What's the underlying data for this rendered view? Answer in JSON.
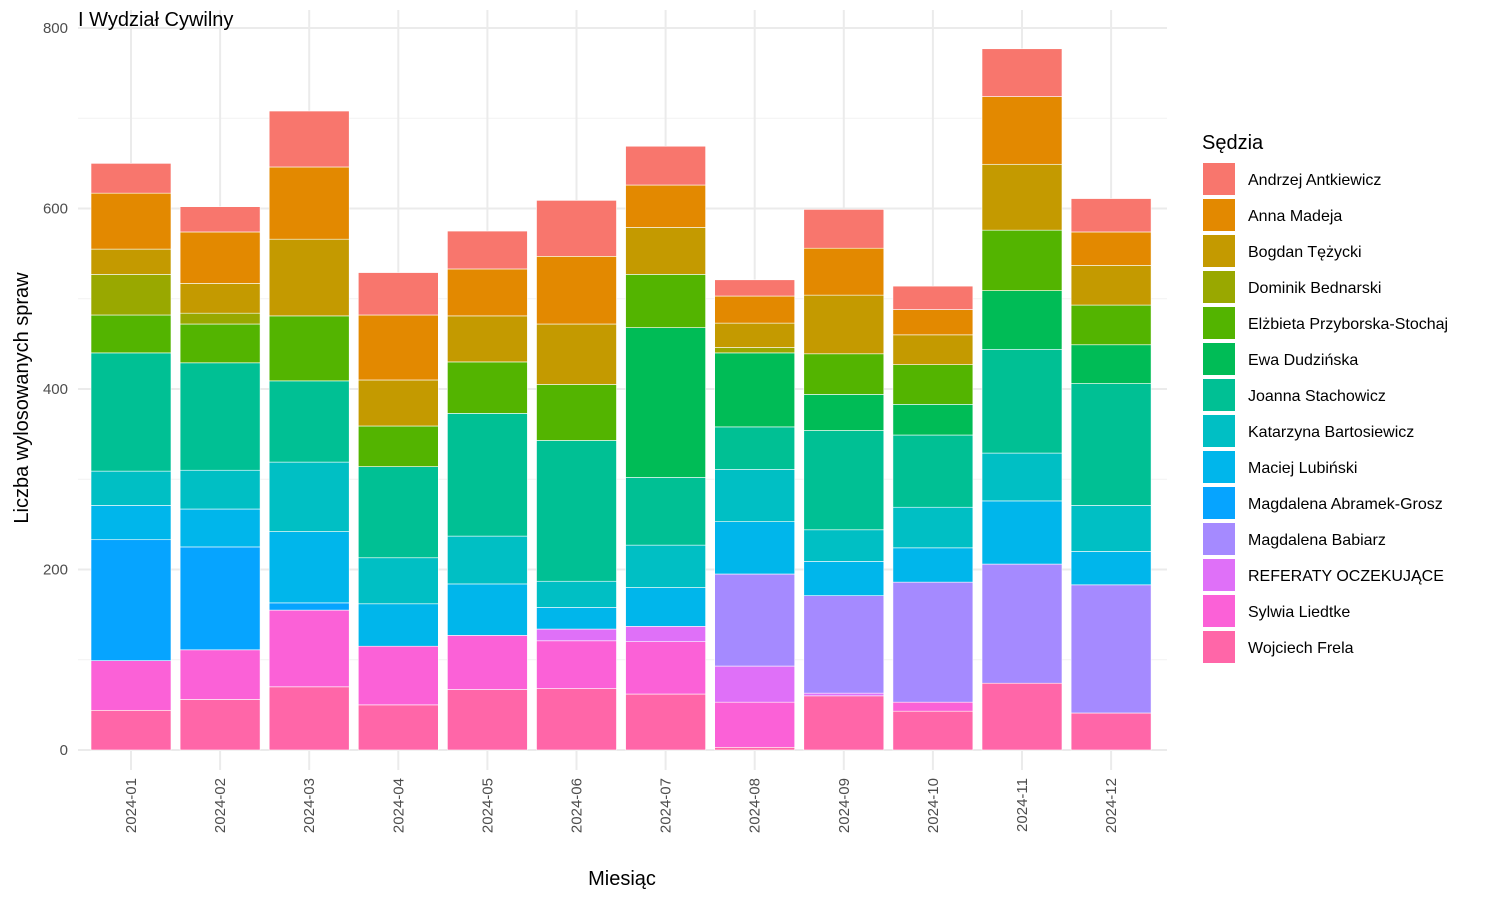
{
  "chart_data": {
    "type": "bar",
    "stacked": true,
    "title": "I Wydział Cywilny",
    "xlabel": "Miesiąc",
    "ylabel": "Liczba wylosowanych spraw",
    "ylim": [
      0,
      800
    ],
    "yticks": [
      0,
      200,
      400,
      600,
      800
    ],
    "grid": true,
    "legend_title": "Sędzia",
    "legend_position": "right",
    "categories": [
      "2024-01",
      "2024-02",
      "2024-03",
      "2024-04",
      "2024-05",
      "2024-06",
      "2024-07",
      "2024-08",
      "2024-09",
      "2024-10",
      "2024-11",
      "2024-12"
    ],
    "series": [
      {
        "name": "Andrzej Antkiewicz",
        "color": "#F8766D",
        "values": [
          33,
          28,
          62,
          47,
          42,
          62,
          43,
          18,
          43,
          26,
          53,
          37
        ]
      },
      {
        "name": "Anna Madeja",
        "color": "#E38900",
        "values": [
          62,
          57,
          80,
          72,
          52,
          75,
          47,
          30,
          52,
          28,
          75,
          37
        ]
      },
      {
        "name": "Bogdan Tężycki",
        "color": "#C49A00",
        "values": [
          28,
          33,
          85,
          51,
          51,
          67,
          52,
          27,
          65,
          33,
          73,
          44
        ]
      },
      {
        "name": "Dominik Bednarski",
        "color": "#99A800",
        "values": [
          45,
          12,
          0,
          0,
          0,
          0,
          0,
          6,
          0,
          0,
          0,
          0
        ]
      },
      {
        "name": "Elżbieta Przyborska-Stochaj",
        "color": "#53B400",
        "values": [
          42,
          43,
          72,
          45,
          57,
          62,
          59,
          0,
          45,
          44,
          67,
          44
        ]
      },
      {
        "name": "Ewa Dudzińska",
        "color": "#00BC56",
        "values": [
          0,
          0,
          0,
          0,
          0,
          0,
          166,
          82,
          40,
          34,
          65,
          43
        ]
      },
      {
        "name": "Joanna Stachowicz",
        "color": "#00C094",
        "values": [
          131,
          119,
          90,
          101,
          136,
          156,
          75,
          47,
          110,
          80,
          115,
          135
        ]
      },
      {
        "name": "Katarzyna Bartosiewicz",
        "color": "#00BFC4",
        "values": [
          38,
          43,
          77,
          51,
          53,
          29,
          47,
          58,
          35,
          45,
          53,
          51
        ]
      },
      {
        "name": "Maciej Lubiński",
        "color": "#00B6EB",
        "values": [
          38,
          42,
          79,
          47,
          57,
          24,
          43,
          58,
          38,
          38,
          70,
          37
        ]
      },
      {
        "name": "Magdalena Abramek-Grosz",
        "color": "#06A4FF",
        "values": [
          134,
          114,
          8,
          0,
          0,
          0,
          0,
          0,
          0,
          0,
          0,
          0
        ]
      },
      {
        "name": "Magdalena Babiarz",
        "color": "#A58AFF",
        "values": [
          0,
          0,
          0,
          0,
          0,
          0,
          0,
          102,
          108,
          133,
          132,
          142
        ]
      },
      {
        "name": "REFERATY OCZEKUJĄCE",
        "color": "#DF70F8",
        "values": [
          0,
          0,
          0,
          0,
          0,
          13,
          17,
          40,
          3,
          0,
          0,
          0
        ]
      },
      {
        "name": "Sylwia Liedtke",
        "color": "#FB61D7",
        "values": [
          55,
          55,
          85,
          65,
          60,
          53,
          58,
          50,
          0,
          10,
          0,
          0
        ]
      },
      {
        "name": "Wojciech Frela",
        "color": "#FF66A8",
        "values": [
          44,
          56,
          70,
          50,
          67,
          68,
          62,
          3,
          60,
          43,
          74,
          41
        ]
      }
    ]
  }
}
